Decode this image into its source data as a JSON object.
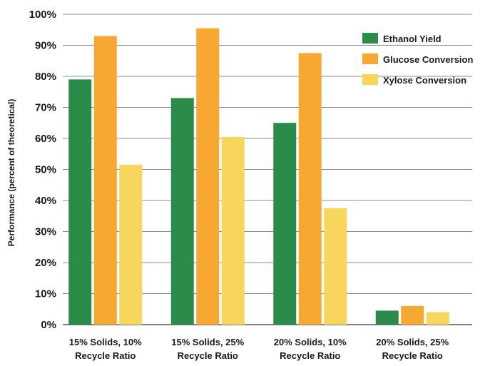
{
  "chart_data": {
    "type": "bar",
    "title": "",
    "xlabel": "",
    "ylabel": "Performance (percent of theoretical)",
    "ylim": [
      0,
      100
    ],
    "yticks": [
      0,
      10,
      20,
      30,
      40,
      50,
      60,
      70,
      80,
      90,
      100
    ],
    "ytick_labels": [
      "0%",
      "10%",
      "20%",
      "30%",
      "40%",
      "50%",
      "60%",
      "70%",
      "80%",
      "90%",
      "100%"
    ],
    "grid": "horizontal",
    "legend_position": "top-right",
    "categories": [
      [
        "15% Solids, 10%",
        "Recycle Ratio"
      ],
      [
        "15% Solids, 25%",
        "Recycle Ratio"
      ],
      [
        "20% Solids, 10%",
        "Recycle Ratio"
      ],
      [
        "20% Solids, 25%",
        "Recycle Ratio"
      ]
    ],
    "series": [
      {
        "name": "Ethanol Yield",
        "color": "#2b8b4b",
        "values": [
          79,
          73,
          65,
          4.5
        ]
      },
      {
        "name": "Glucose Conversion",
        "color": "#f7a832",
        "values": [
          93,
          95.5,
          87.5,
          6
        ]
      },
      {
        "name": "Xylose Conversion",
        "color": "#f8d55c",
        "values": [
          51.5,
          60.5,
          37.5,
          4
        ]
      }
    ]
  }
}
